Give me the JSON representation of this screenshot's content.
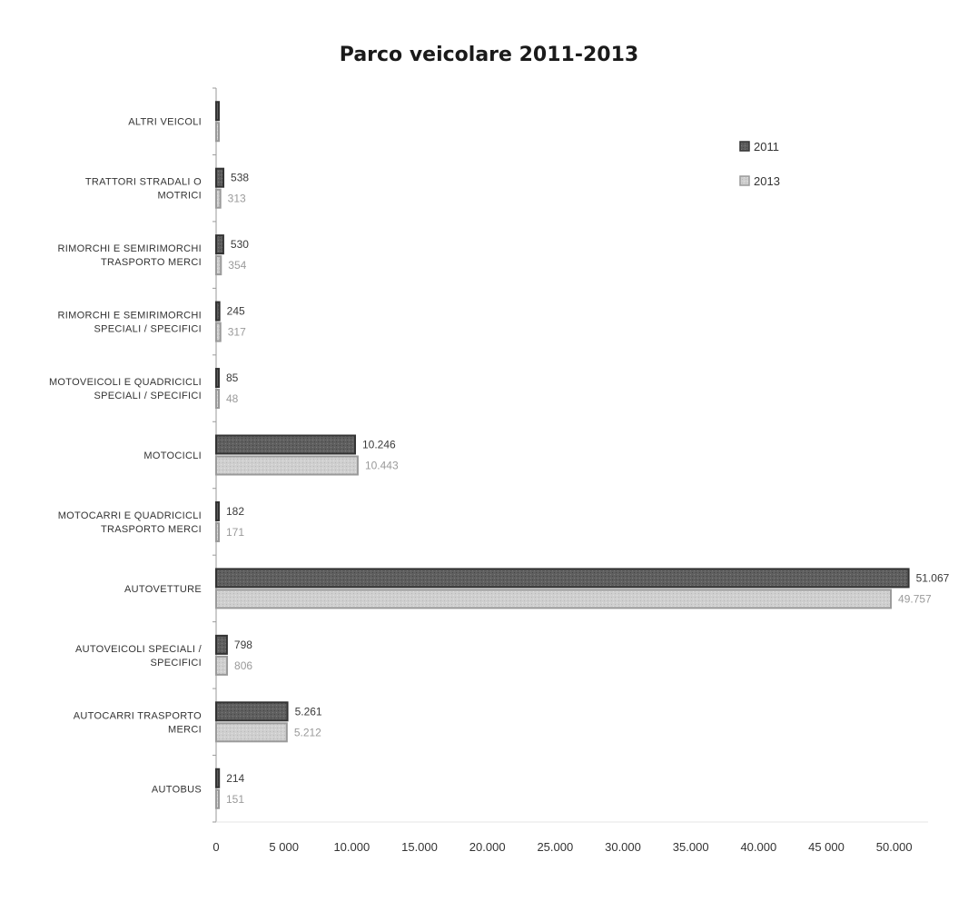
{
  "chart_data": {
    "type": "bar",
    "orientation": "horizontal",
    "title": "Parco veicolare 2011-2013",
    "xlabel": "",
    "ylabel": "",
    "xlim": [
      0,
      52500
    ],
    "x_ticks": [
      0,
      5000,
      10000,
      15000,
      20000,
      25000,
      30000,
      35000,
      40000,
      45000,
      50000
    ],
    "x_tick_labels": [
      "0",
      "5 000",
      "10.000",
      "15.000",
      "20.000",
      "25.000",
      "30.000",
      "35.000",
      "40.000",
      "45 000",
      "50.000"
    ],
    "categories": [
      [
        "ALTRI VEICOLI"
      ],
      [
        "TRATTORI STRADALI O",
        "MOTRICI"
      ],
      [
        "RIMORCHI E SEMIRIMORCHI",
        "TRASPORTO MERCI"
      ],
      [
        "RIMORCHI E SEMIRIMORCHI",
        "SPECIALI / SPECIFICI"
      ],
      [
        "MOTOVEICOLI E QUADRICICLI",
        "SPECIALI / SPECIFICI"
      ],
      [
        "MOTOCICLI"
      ],
      [
        "MOTOCARRI E QUADRICICLI",
        "TRASPORTO MERCI"
      ],
      [
        "AUTOVETTURE"
      ],
      [
        "AUTOVEICOLI SPECIALI /",
        "SPECIFICI"
      ],
      [
        "AUTOCARRI TRASPORTO",
        "MERCI"
      ],
      [
        "AUTOBUS"
      ]
    ],
    "series": [
      {
        "name": "2011",
        "color": "#5a5a5a",
        "values": [
          40,
          538,
          530,
          245,
          85,
          10246,
          182,
          51067,
          798,
          5261,
          214
        ],
        "value_labels": [
          "",
          "538",
          "530",
          "245",
          "85",
          "10.246",
          "182",
          "51.067",
          "798",
          "5.261",
          "214"
        ]
      },
      {
        "name": "2013",
        "color": "#c9c9c9",
        "values": [
          20,
          313,
          354,
          317,
          48,
          10443,
          171,
          49757,
          806,
          5212,
          151
        ],
        "value_labels": [
          "",
          "313",
          "354",
          "317",
          "48",
          "10.443",
          "171",
          "49.757",
          "806",
          "5.212",
          "151"
        ]
      }
    ],
    "grid": false,
    "legend_position": "top-right"
  }
}
